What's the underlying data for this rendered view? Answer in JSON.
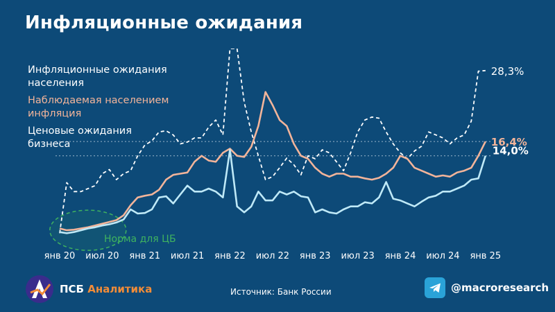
{
  "header": {
    "title": "Инфляционные ожидания"
  },
  "legend": [
    {
      "line1": "Инфляционные ожидания",
      "line2": "населения",
      "color": "#ffffff"
    },
    {
      "line1": "Наблюдаемая населением",
      "line2": "инфляция",
      "color": "#f2b49a"
    },
    {
      "line1": "Ценовые ожидания",
      "line2": "бизнеса",
      "color": "#ffffff"
    }
  ],
  "annotation": {
    "norm_label": "Норма для ЦБ"
  },
  "footer": {
    "brand_main": "ПСБ",
    "brand_accent": "Аналитика",
    "source": "Источник: Банк России",
    "handle": "@macroresearch"
  },
  "colors": {
    "background": "#0d4a78",
    "households_expectations": "#ffffff",
    "observed_inflation": "#f2b49a",
    "business_expectations": "#bfe9f7",
    "norm": "#3fb35f",
    "brand_accent": "#f28c38"
  },
  "icons": {
    "logo": "psb-logo-icon",
    "telegram": "telegram-icon"
  },
  "chart_data": {
    "type": "line",
    "x_ticks": [
      "янв 20",
      "июл 20",
      "янв 21",
      "июл 21",
      "янв 22",
      "июл 22",
      "янв 23",
      "июл 23",
      "янв 24",
      "июл 24",
      "янв 25"
    ],
    "x_tick_values": [
      0,
      6,
      12,
      18,
      24,
      30,
      36,
      42,
      48,
      54,
      60
    ],
    "xlim": [
      0,
      61
    ],
    "ylim": [
      0,
      32
    ],
    "grid": false,
    "series": [
      {
        "name": "Инфляционные ожидания населения",
        "style": "dashed",
        "color": "#ffffff",
        "x": [
          0,
          1,
          2,
          3,
          4,
          5,
          6,
          7,
          8,
          9,
          10,
          11,
          12,
          13,
          14,
          15,
          16,
          17,
          18,
          19,
          20,
          21,
          22,
          23,
          24,
          25,
          26,
          27,
          28,
          29,
          30,
          31,
          32,
          33,
          34,
          35,
          36,
          37,
          38,
          39,
          40,
          41,
          42,
          43,
          44,
          45,
          46,
          47,
          48,
          49,
          50,
          51,
          52,
          53,
          54,
          55,
          56,
          57,
          58,
          59,
          60
        ],
        "y": [
          1,
          9.5,
          8,
          8,
          8.5,
          9,
          11,
          11.7,
          10,
          11,
          11.5,
          14,
          15.8,
          16.5,
          18,
          18.2,
          17.5,
          16,
          16.3,
          17,
          17,
          18.8,
          20,
          17.5,
          32,
          32,
          23,
          18,
          14,
          10,
          10.5,
          12,
          13.6,
          12.5,
          10.8,
          14,
          13.5,
          15,
          14.5,
          13,
          11.5,
          14.5,
          18,
          20,
          20.5,
          20.3,
          18,
          16,
          14.5,
          13.5,
          14.8,
          15.6,
          18,
          17.5,
          17,
          16,
          17,
          17.5,
          19.8,
          28.2,
          28.3
        ],
        "end_label": "28,3%"
      },
      {
        "name": "Наблюдаемая населением инфляция",
        "style": "solid",
        "color": "#f2b49a",
        "x": [
          0,
          1,
          2,
          3,
          4,
          5,
          6,
          7,
          8,
          9,
          10,
          11,
          12,
          13,
          14,
          15,
          16,
          17,
          18,
          19,
          20,
          21,
          22,
          23,
          24,
          25,
          26,
          27,
          28,
          29,
          30,
          31,
          32,
          33,
          34,
          35,
          36,
          37,
          38,
          39,
          40,
          41,
          42,
          43,
          44,
          45,
          46,
          47,
          48,
          49,
          50,
          51,
          52,
          53,
          54,
          55,
          56,
          57,
          58,
          59,
          60
        ],
        "y": [
          1.8,
          1.5,
          1.6,
          1.8,
          2,
          2.3,
          2.6,
          2.9,
          3.2,
          4,
          5.7,
          7,
          7.3,
          7.5,
          8.3,
          10,
          10.8,
          11,
          11.2,
          13,
          14,
          13.2,
          13,
          14.5,
          15.2,
          14,
          13.8,
          15.5,
          19,
          24.7,
          22.5,
          20,
          19,
          16,
          14,
          13.5,
          12,
          11,
          10.5,
          11,
          11,
          10.5,
          10.5,
          10.2,
          10,
          10.3,
          11,
          12,
          14,
          13.5,
          12,
          11.5,
          11,
          10.5,
          10.7,
          10.5,
          11.2,
          11.5,
          12,
          14,
          16.4
        ],
        "end_label": "16,4%"
      },
      {
        "name": "Ценовые ожидания бизнеса",
        "style": "solid",
        "color": "#bfe9f7",
        "x": [
          0,
          1,
          2,
          3,
          4,
          5,
          6,
          7,
          8,
          9,
          10,
          11,
          12,
          13,
          14,
          15,
          16,
          17,
          18,
          19,
          20,
          21,
          22,
          23,
          24,
          25,
          26,
          27,
          28,
          29,
          30,
          31,
          32,
          33,
          34,
          35,
          36,
          37,
          38,
          39,
          40,
          41,
          42,
          43,
          44,
          45,
          46,
          47,
          48,
          49,
          50,
          51,
          52,
          53,
          54,
          55,
          56,
          57,
          58,
          59,
          60
        ],
        "y": [
          1.2,
          1,
          1.2,
          1.5,
          1.8,
          2,
          2.3,
          2.5,
          2.8,
          3.3,
          5,
          4.3,
          4.4,
          5,
          7,
          7.2,
          6,
          7.5,
          9,
          8,
          8,
          8.5,
          8,
          7,
          15,
          5.5,
          4.5,
          5.5,
          8,
          6.5,
          6.5,
          8,
          7.5,
          8,
          7.2,
          7,
          4.5,
          5,
          4.5,
          4.3,
          5,
          5.5,
          5.5,
          6.2,
          6,
          7,
          9.6,
          6.8,
          6.5,
          6,
          5.5,
          6.3,
          7,
          7.3,
          8,
          8,
          8.5,
          9,
          10,
          10.2,
          14
        ],
        "end_label": "14,0%"
      }
    ],
    "reference_lines": [
      {
        "y": 16.4,
        "style": "dotted"
      },
      {
        "y": 14.0,
        "style": "dotted"
      }
    ],
    "norm_region": {
      "x_center": 3.5,
      "y_center": 1.5
    }
  }
}
